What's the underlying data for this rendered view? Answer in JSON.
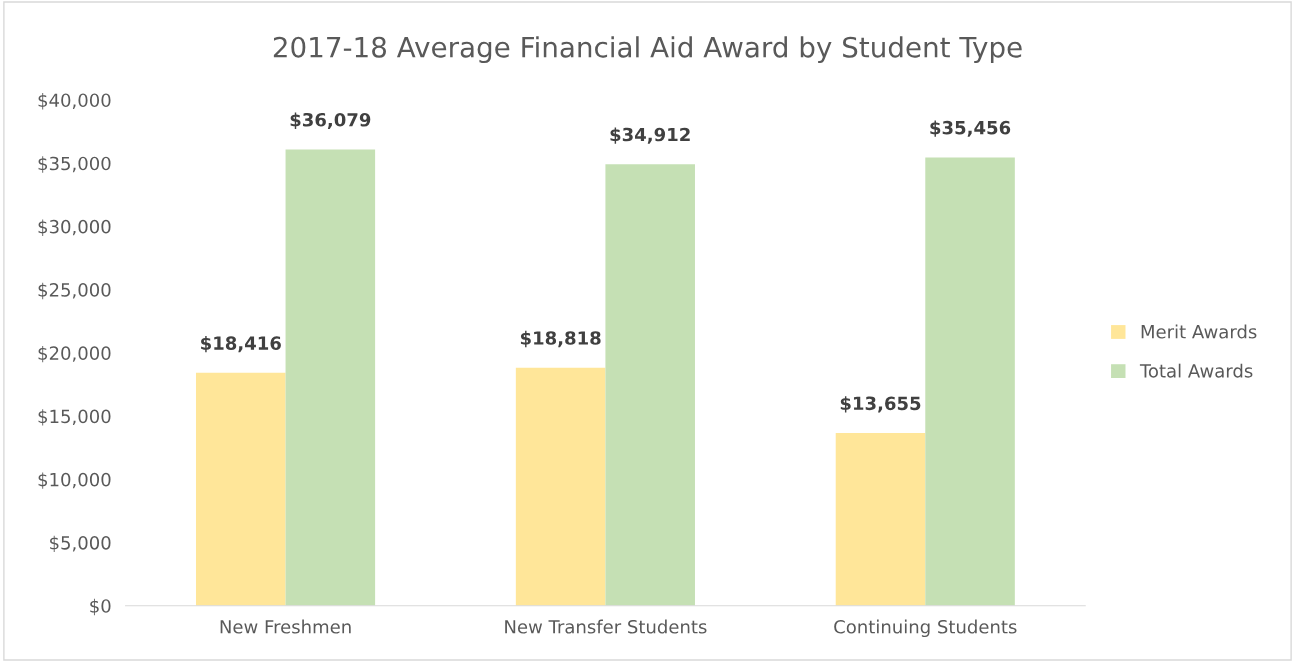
{
  "chart_data": {
    "type": "bar",
    "title": "2017-18 Average Financial Aid Award by Student Type",
    "categories": [
      "New Freshmen",
      "New Transfer Students",
      "Continuing Students"
    ],
    "series": [
      {
        "name": "Merit Awards",
        "color": "#ffe699",
        "values": [
          18416,
          18818,
          13655
        ],
        "value_labels": [
          "$18,416",
          "$18,818",
          "$13,655"
        ]
      },
      {
        "name": "Total Awards",
        "color": "#c5e0b4",
        "values": [
          36079,
          34912,
          35456
        ],
        "value_labels": [
          "$36,079",
          "$34,912",
          "$35,456"
        ]
      }
    ],
    "ylim": [
      0,
      40000
    ],
    "yticks": [
      {
        "value": 0,
        "label": "$0"
      },
      {
        "value": 5000,
        "label": "$5,000"
      },
      {
        "value": 10000,
        "label": "$10,000"
      },
      {
        "value": 15000,
        "label": "$15,000"
      },
      {
        "value": 20000,
        "label": "$20,000"
      },
      {
        "value": 25000,
        "label": "$25,000"
      },
      {
        "value": 30000,
        "label": "$30,000"
      },
      {
        "value": 35000,
        "label": "$35,000"
      },
      {
        "value": 40000,
        "label": "$40,000"
      }
    ],
    "grid": false,
    "legend": "right"
  }
}
